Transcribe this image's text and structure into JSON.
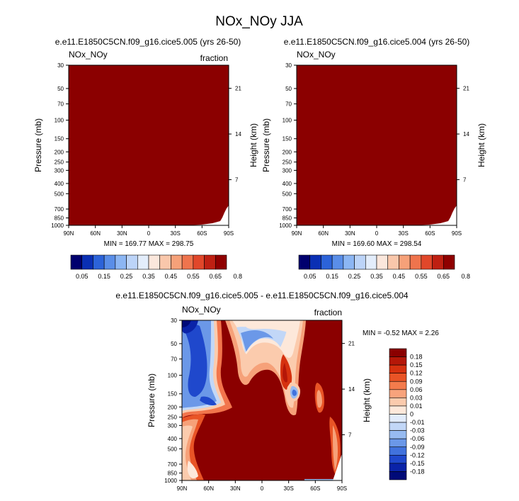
{
  "figure": {
    "main_title": "NOx_NOy JJA"
  },
  "chart_data": [
    {
      "type": "heatmap",
      "title": "e.e11.E1850C5CN.f09_g16.cice5.005 (yrs 26-50)",
      "left_string": "NOx_NOy",
      "right_string": "fraction",
      "ylabel": "Pressure (mb)",
      "ylabel_right": "Height (km)",
      "x_ticks": [
        "90N",
        "60N",
        "30N",
        "0",
        "30S",
        "60S",
        "90S"
      ],
      "y_ticks": [
        "30",
        "50",
        "70",
        "100",
        "150",
        "200",
        "250",
        "300",
        "400",
        "500",
        "700",
        "850",
        "1000"
      ],
      "y_ticks_right": [
        "21",
        "14",
        "7"
      ],
      "stats": "MIN = 169.77   MAX = 298.75",
      "fill_color": "#8b0000",
      "colorbar_labels": [
        "0.05",
        "0.15",
        "0.25",
        "0.35",
        "0.45",
        "0.55",
        "0.65",
        "0.8"
      ]
    },
    {
      "type": "heatmap",
      "title": "e.e11.E1850C5CN.f09_g16.cice5.004 (yrs 26-50)",
      "left_string": "NOx_NOy",
      "right_string": "",
      "ylabel": "Pressure (mb)",
      "ylabel_right": "Height (km)",
      "x_ticks": [
        "90N",
        "60N",
        "30N",
        "0",
        "30S",
        "60S",
        "90S"
      ],
      "y_ticks": [
        "30",
        "50",
        "70",
        "100",
        "150",
        "200",
        "250",
        "300",
        "400",
        "500",
        "700",
        "850",
        "1000"
      ],
      "y_ticks_right": [
        "21",
        "14",
        "7"
      ],
      "stats": "MIN = 169.60   MAX = 298.54",
      "fill_color": "#8b0000",
      "colorbar_labels": [
        "0.05",
        "0.15",
        "0.25",
        "0.35",
        "0.45",
        "0.55",
        "0.65",
        "0.8"
      ]
    },
    {
      "type": "heatmap",
      "title": "e.e11.E1850C5CN.f09_g16.cice5.005 - e.e11.E1850C5CN.f09_g16.cice5.004",
      "left_string": "NOx_NOy",
      "right_string": "fraction",
      "ylabel": "Pressure (mb)",
      "ylabel_right": "Height (km)",
      "x_ticks": [
        "90N",
        "60N",
        "30N",
        "0",
        "30S",
        "60S",
        "90S"
      ],
      "y_ticks": [
        "30",
        "50",
        "70",
        "100",
        "150",
        "200",
        "250",
        "300",
        "400",
        "500",
        "700",
        "850",
        "1000"
      ],
      "y_ticks_right": [
        "21",
        "14",
        "7"
      ],
      "stats": "MIN = -0.52   MAX =  2.26",
      "colorbar_labels": [
        "0.18",
        "0.15",
        "0.12",
        "0.09",
        "0.06",
        "0.03",
        "0.01",
        "0",
        "-0.01",
        "-0.03",
        "-0.06",
        "-0.09",
        "-0.12",
        "-0.15",
        "-0.18"
      ]
    }
  ],
  "colors": {
    "bar1": [
      "#00006e",
      "#0a2fb4",
      "#2c63d9",
      "#5a8ee8",
      "#8cb6f3",
      "#bcd4f8",
      "#e3edfb",
      "#fbe7dc",
      "#f9c7ab",
      "#f6a179",
      "#ef744d",
      "#e1472a",
      "#bf2012",
      "#8f0000"
    ],
    "bar3": [
      "#8b0000",
      "#b51708",
      "#d6310f",
      "#e95426",
      "#f37b4c",
      "#f8a37c",
      "#fbcbad",
      "#fde8da",
      "#e2ecfb",
      "#c2d7f7",
      "#97bbf1",
      "#6b98e8",
      "#4172dd",
      "#1f48cc",
      "#0a23a8",
      "#000a78"
    ],
    "diff_bg": "#8b0000"
  }
}
